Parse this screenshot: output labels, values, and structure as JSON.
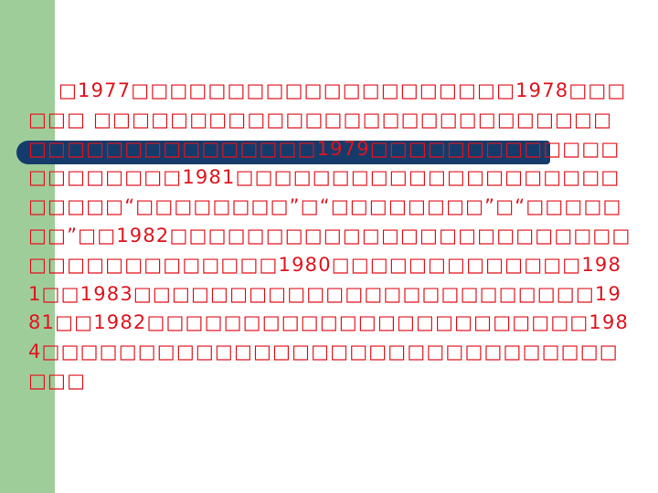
{
  "slide": {
    "colors": {
      "side_band": "#9fcd9a",
      "accent_bar": "#153b6b",
      "text": "#e0141e",
      "background": "#ffffff"
    },
    "paragraph": "□1977□□□□□□□□□□□□□□□□□□□□1978□□□□□□ □□□□□□□□□□□□□□□□□□□□□□□□□□□□□□□□□□□□□□□□□□1979□□□□□□□□□□□□□□□□□□□□□1981□□□□□□□□□□□□□□□□□□□□□□□□□“□□□□□□□□”□“□□□□□□□□”□“□□□□□□□”□□1982□□□□□□□□□□□□□□□□□□□□□□□□□□□□□□□□□□□□□1980□□□□□□□□□□□□□1981□□1983□□□□□□□□□□□□□□□□□□□□□□□□1981□□1982□□□□□□□□□□□□□□□□□□□□□□□1984□□□□□□□□□□□□□□□□□□□□□□□□□□□□□□□□□"
  }
}
